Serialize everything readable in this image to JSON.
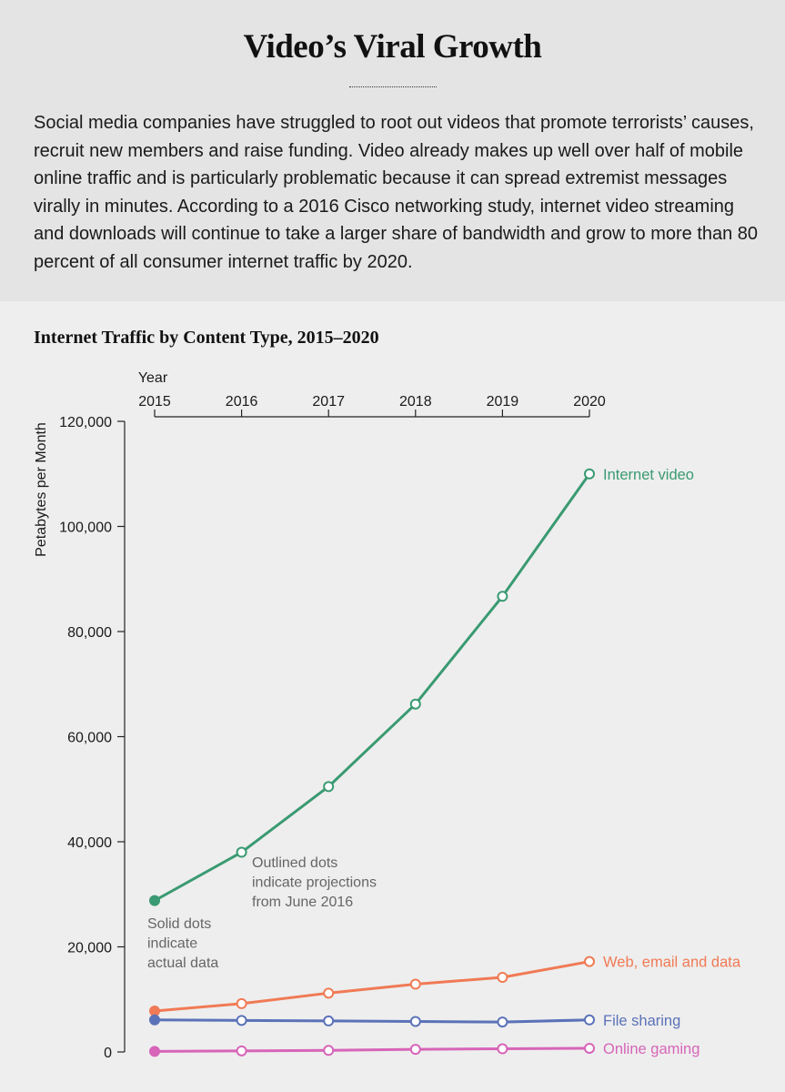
{
  "header": {
    "title": "Video’s Viral Growth",
    "intro": "Social media companies have struggled to root out videos that promote terrorists’ causes, recruit new members and raise funding. Video already makes up well over half of mobile online traffic and is particularly problematic because it can spread extremist messages virally in minutes. According to a 2016 Cisco networking study, internet video streaming and downloads will continue to take a larger share of bandwidth and grow to more than 80 percent of all consumer internet traffic by 2020."
  },
  "chart_data": {
    "type": "line",
    "title": "Internet Traffic by Content Type, 2015–2020",
    "xlabel": "Year",
    "ylabel": "Petabytes per Month",
    "x": [
      2015,
      2016,
      2017,
      2018,
      2019,
      2020
    ],
    "x_tick_labels": [
      "2015",
      "2016",
      "2017",
      "2018",
      "2019",
      "2020"
    ],
    "ylim": [
      0,
      120000
    ],
    "y_ticks": [
      0,
      20000,
      40000,
      60000,
      80000,
      100000,
      120000
    ],
    "y_tick_labels": [
      "0",
      "20,000",
      "40,000",
      "60,000",
      "80,000",
      "100,000",
      "120,000"
    ],
    "x_axis_position": "top",
    "grid": false,
    "actual_points": 1,
    "series": [
      {
        "name": "Internet video",
        "color": "#3a9a72",
        "values": [
          28800,
          38000,
          50500,
          66200,
          86700,
          110000
        ]
      },
      {
        "name": "Web, email and data",
        "color": "#f07a55",
        "values": [
          7800,
          9200,
          11200,
          12900,
          14200,
          17200
        ]
      },
      {
        "name": "File sharing",
        "color": "#5b72b8",
        "values": [
          6100,
          6000,
          5900,
          5800,
          5700,
          6100
        ]
      },
      {
        "name": "Online gaming",
        "color": "#d765b8",
        "values": [
          100,
          200,
          300,
          500,
          600,
          700
        ]
      }
    ],
    "annotations": {
      "actual": [
        "Solid dots",
        "indicate",
        "actual data"
      ],
      "projected": [
        "Outlined dots",
        "indicate projections",
        "from June 2016"
      ]
    }
  }
}
